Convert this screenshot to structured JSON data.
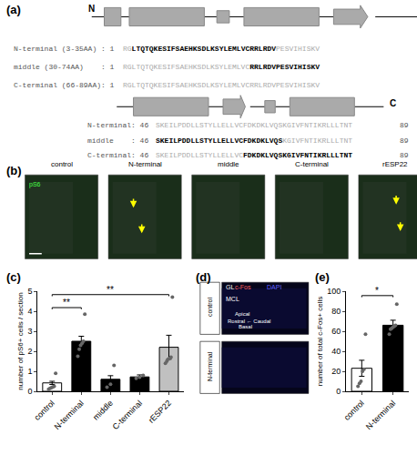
{
  "chart_data": [
    {
      "type": "diagram",
      "title": "(a)",
      "color": "#aaaaaa",
      "annotations": [
        "N",
        "C"
      ],
      "rows": [
        {
          "label": "N-terminal (3-35AA) : 1",
          "sequence": [
            "RG",
            "LTQTQKESIFSAEHKSDLKSYLEMLVCRRLRDV",
            "PESVIHISKV"
          ]
        },
        {
          "label": "middle (30-74AA)    : 1",
          "sequence": [
            "RGLTQTQKESIFSAEHKSDLKSYLEMLVC",
            "RRLRDVPESVIHISKV"
          ]
        },
        {
          "label": "C-terminal (66-89AA): 1",
          "sequence": [
            "RGLTQTQKESIFSAEHKSDLKSYLEMLVCRRLRDVPESVIHISKV"
          ]
        },
        {
          "label": "N-terminal: 46",
          "sequence": [
            "SKEILPDDLLSTYLLELLVCFDKDKLVQSKGIVFNTIKRLLLTNT"
          ],
          "end": 89
        },
        {
          "label": "middle    : 46",
          "sequence": [
            "SKEILPDDLLSTYLLELLVCFDKDKLVQS",
            "KGIVFNTIKRLLLTNT"
          ],
          "end": 89
        },
        {
          "label": "C-terminal: 46",
          "sequence": [
            "SKEILPDDLLSTYLLELLVC",
            "FDKDKLVQSKGIVFNTIKRLLLTNT"
          ],
          "end": 89
        }
      ]
    },
    {
      "type": "images",
      "title": "(b)",
      "categories": [
        "control",
        "N-terminal",
        "middle",
        "C-terminal",
        "rESP22"
      ],
      "annotations": [
        "pS6"
      ]
    },
    {
      "type": "bar",
      "title": "(c)",
      "categories": [
        "control",
        "N-terminal",
        "middle",
        "C-terminal",
        "rESP22"
      ],
      "ylabel": "number of pS6+ cells / section",
      "ylim": [
        0,
        5
      ],
      "yticks": [
        0,
        1,
        2,
        3,
        4,
        5
      ],
      "grid": false,
      "series": [
        {
          "type": "bar",
          "values": [
            0.42,
            2.5,
            0.6,
            0.72,
            2.2
          ],
          "errors": [
            0.08,
            0.25,
            0.18,
            0.1,
            0.6
          ],
          "colors": [
            "white",
            "black",
            "black",
            "black",
            "#c0c0c0"
          ]
        },
        {
          "type": "scatter",
          "color": "#666666",
          "values": [
            [
              0.1,
              0.15,
              0.18,
              0.22,
              0.25,
              0.9
            ],
            [
              1.75,
              2.1,
              2.3,
              2.4,
              2.5,
              3.85
            ],
            [
              0.2,
              0.35,
              1.3
            ],
            [
              0.65,
              0.7,
              0.8
            ],
            [
              1.4,
              1.5,
              1.6,
              1.65,
              1.7,
              4.7
            ]
          ]
        }
      ],
      "annotations": [
        {
          "text": "**",
          "from": 0,
          "to": 1,
          "y": 4.1
        },
        {
          "text": "**",
          "from": 0,
          "to": 4,
          "y": 4.75
        }
      ]
    },
    {
      "type": "sections",
      "title": "(d)",
      "categories": [
        "control",
        "N-terminal"
      ],
      "annotations": [
        "GL",
        "c-Fos",
        "DAPI",
        "MCL",
        "Apical",
        "Rostral ← Caudal",
        "Basal"
      ]
    },
    {
      "type": "bar",
      "title": "(e)",
      "categories": [
        "control",
        "N-terminal"
      ],
      "ylabel": "number of total c-Fos+ cells",
      "ylim": [
        0,
        100
      ],
      "yticks": [
        0,
        20,
        40,
        60,
        80,
        100
      ],
      "grid": false,
      "series": [
        {
          "type": "bar",
          "values": [
            23,
            66
          ],
          "errors": [
            8,
            5
          ],
          "colors": [
            "white",
            "black"
          ]
        },
        {
          "type": "scatter",
          "color": "#666666",
          "values": [
            [
              5,
              8,
              10,
              20,
              22,
              57
            ],
            [
              57,
              62,
              63,
              64,
              65,
              66,
              87
            ]
          ]
        }
      ],
      "annotations": [
        {
          "text": "*",
          "from": 0,
          "to": 1,
          "y": 94
        }
      ]
    }
  ]
}
